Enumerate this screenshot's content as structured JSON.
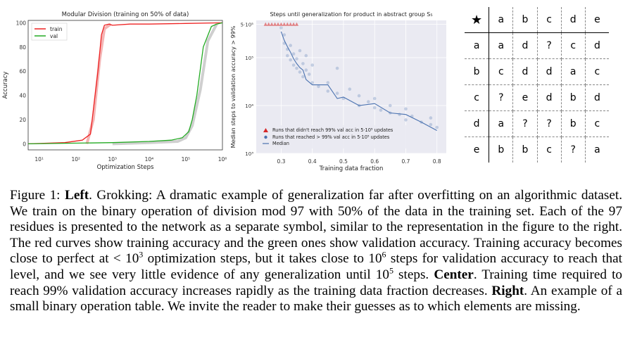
{
  "chart_data": [
    {
      "type": "line",
      "title": "Modular Division (training on 50% of data)",
      "xlabel": "Optimization Steps",
      "ylabel": "Accuracy",
      "xscale": "log",
      "xlim": [
        5,
        1000000
      ],
      "ylim": [
        -5,
        102
      ],
      "xtick_labels": [
        "10¹",
        "10²",
        "10³",
        "10⁴",
        "10⁵",
        "10⁶"
      ],
      "xtick_values": [
        10,
        100,
        1000,
        10000,
        100000,
        1000000
      ],
      "ytick_labels": [
        "0",
        "20",
        "40",
        "60",
        "80",
        "100"
      ],
      "ytick_values": [
        0,
        20,
        40,
        60,
        80,
        100
      ],
      "legend_position": "top-left",
      "series": [
        {
          "name": "train",
          "color": "#ee2222",
          "x": [
            5,
            50,
            150,
            250,
            400,
            500,
            600,
            800,
            1000,
            3000,
            10000,
            100000,
            1000000
          ],
          "y": [
            0,
            1,
            3,
            8,
            60,
            90,
            98,
            99,
            98,
            99,
            99,
            99.5,
            100
          ]
        },
        {
          "name": "val",
          "color": "#22aa22",
          "x": [
            5,
            1000,
            10000,
            40000,
            80000,
            120000,
            150000,
            200000,
            300000,
            500000,
            700000,
            1000000
          ],
          "y": [
            0,
            1,
            2,
            3,
            5,
            10,
            20,
            40,
            80,
            97,
            99,
            100
          ]
        }
      ],
      "faint_series": [
        {
          "color": "#f4b4b4",
          "x": [
            200,
            300,
            450,
            600,
            900
          ],
          "y": [
            0,
            20,
            70,
            95,
            99
          ]
        },
        {
          "color": "#cfcfcf",
          "x": [
            1000,
            10000,
            60000,
            100000,
            150000,
            250000,
            400000,
            700000
          ],
          "y": [
            0,
            1,
            2,
            5,
            15,
            45,
            85,
            99
          ]
        }
      ]
    },
    {
      "type": "scatter",
      "title": "Steps until generalization for product in abstract group S₅",
      "xlabel": "Training data fraction",
      "ylabel": "Median steps to validation accuracy > 99%",
      "yscale": "log",
      "xlim": [
        0.22,
        0.83
      ],
      "ylim": [
        1000,
        600000
      ],
      "xtick_labels": [
        "0.3",
        "0.4",
        "0.5",
        "0.6",
        "0.7",
        "0.8"
      ],
      "xtick_values": [
        0.3,
        0.4,
        0.5,
        0.6,
        0.7,
        0.8
      ],
      "ytick_labels": [
        "10³",
        "10⁴",
        "10⁵",
        "5·10⁵"
      ],
      "ytick_values": [
        1000,
        10000,
        100000,
        500000
      ],
      "legend_position": "bottom-left",
      "legend": [
        "Runs that didn't reach 99% val acc in 5·10⁵ updates",
        "Runs that reached > 99% val acc in 5·10⁵ updates",
        "Median"
      ],
      "not_reached_x": [
        0.25,
        0.26,
        0.27,
        0.28,
        0.29,
        0.3,
        0.31,
        0.32,
        0.33,
        0.34,
        0.35
      ],
      "reached_points": [
        [
          0.3,
          420000
        ],
        [
          0.31,
          300000
        ],
        [
          0.31,
          200000
        ],
        [
          0.32,
          150000
        ],
        [
          0.32,
          110000
        ],
        [
          0.33,
          180000
        ],
        [
          0.33,
          90000
        ],
        [
          0.34,
          120000
        ],
        [
          0.34,
          70000
        ],
        [
          0.35,
          95000
        ],
        [
          0.35,
          60000
        ],
        [
          0.36,
          140000
        ],
        [
          0.36,
          50000
        ],
        [
          0.37,
          75000
        ],
        [
          0.37,
          40000
        ],
        [
          0.38,
          55000
        ],
        [
          0.38,
          110000
        ],
        [
          0.39,
          45000
        ],
        [
          0.4,
          30000
        ],
        [
          0.4,
          70000
        ],
        [
          0.42,
          25000
        ],
        [
          0.45,
          30000
        ],
        [
          0.45,
          20000
        ],
        [
          0.48,
          60000
        ],
        [
          0.48,
          18000
        ],
        [
          0.5,
          14000
        ],
        [
          0.52,
          22000
        ],
        [
          0.55,
          10000
        ],
        [
          0.55,
          16000
        ],
        [
          0.58,
          12000
        ],
        [
          0.6,
          9000
        ],
        [
          0.6,
          14000
        ],
        [
          0.62,
          8000
        ],
        [
          0.65,
          10000
        ],
        [
          0.65,
          7000
        ],
        [
          0.68,
          6500
        ],
        [
          0.7,
          8500
        ],
        [
          0.7,
          5000
        ],
        [
          0.72,
          6000
        ],
        [
          0.75,
          4500
        ],
        [
          0.78,
          5500
        ],
        [
          0.78,
          4000
        ],
        [
          0.8,
          3500
        ]
      ],
      "median": {
        "name": "Median",
        "color": "#4a72b0",
        "x": [
          0.3,
          0.31,
          0.32,
          0.33,
          0.34,
          0.35,
          0.36,
          0.37,
          0.38,
          0.4,
          0.45,
          0.48,
          0.5,
          0.55,
          0.6,
          0.65,
          0.7,
          0.75,
          0.8
        ],
        "y": [
          350000,
          230000,
          170000,
          130000,
          95000,
          75000,
          62000,
          55000,
          35000,
          27000,
          27000,
          14000,
          15000,
          10000,
          11000,
          7000,
          6500,
          4500,
          3000
        ]
      }
    }
  ],
  "table": {
    "header": [
      "★",
      "a",
      "b",
      "c",
      "d",
      "e"
    ],
    "rows": [
      [
        "a",
        "a",
        "d",
        "?",
        "c",
        "d"
      ],
      [
        "b",
        "c",
        "d",
        "d",
        "a",
        "c"
      ],
      [
        "c",
        "?",
        "e",
        "d",
        "b",
        "d"
      ],
      [
        "d",
        "a",
        "?",
        "?",
        "b",
        "c"
      ],
      [
        "e",
        "b",
        "b",
        "c",
        "?",
        "a"
      ]
    ]
  },
  "caption": {
    "label": "Figure 1:",
    "left_head": "Left",
    "left_text_1": ". Grokking: A dramatic example of generalization far after overfitting on an algorithmic dataset. We train on the binary operation of division mod 97 with ",
    "pct": "50%",
    "left_text_2": " of the data in the training set. Each of the 97 residues is presented to the network as a separate symbol, similar to the representation in the figure to the right. The red curves show training accuracy and the green ones show validation accuracy. Training accuracy becomes close to perfect at < 10",
    "exp1": "3",
    "left_text_3": " optimization steps, but it takes close to 10",
    "exp2": "6",
    "left_text_4": " steps for validation accuracy to reach that level, and we see very little evidence of any generalization until 10",
    "exp3": "5",
    "left_text_5": " steps. ",
    "center_head": "Center",
    "center_text": ". Training time required to reach 99% validation accuracy increases rapidly as the training data fraction decreases. ",
    "right_head": "Right",
    "right_text": ". An example of a small binary operation table. We invite the reader to make their guesses as to which elements are missing."
  }
}
